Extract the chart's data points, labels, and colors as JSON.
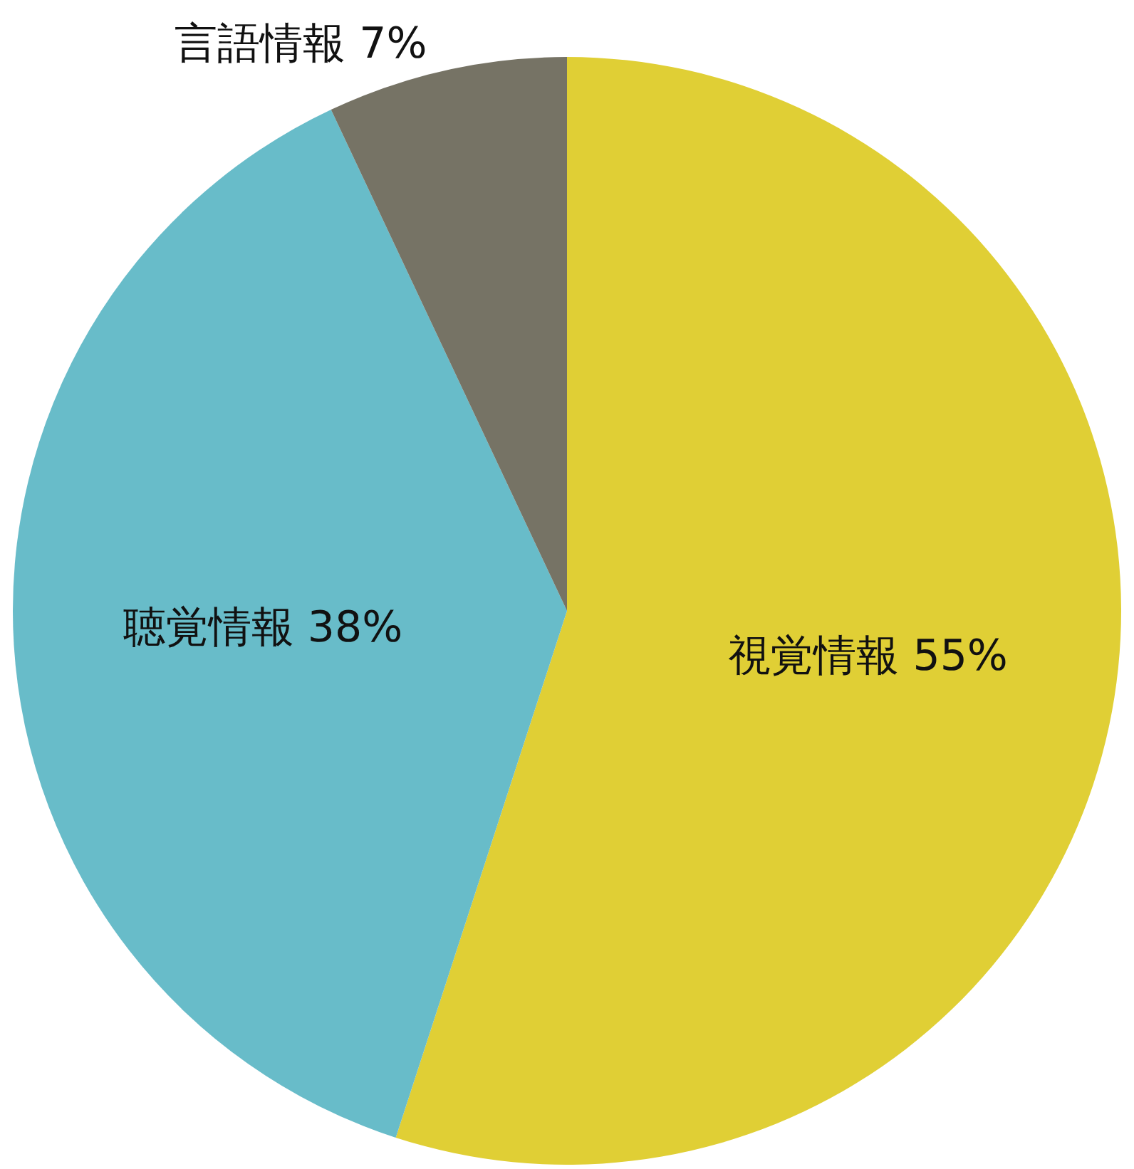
{
  "chart_data": {
    "type": "pie",
    "categories": [
      "視覚情報",
      "聴覚情報",
      "言語情報"
    ],
    "values": [
      55,
      38,
      7
    ],
    "value_labels": [
      "55%",
      "38%",
      "7%"
    ],
    "colors": [
      "#e0cf35",
      "#68bcc9",
      "#767365"
    ]
  }
}
